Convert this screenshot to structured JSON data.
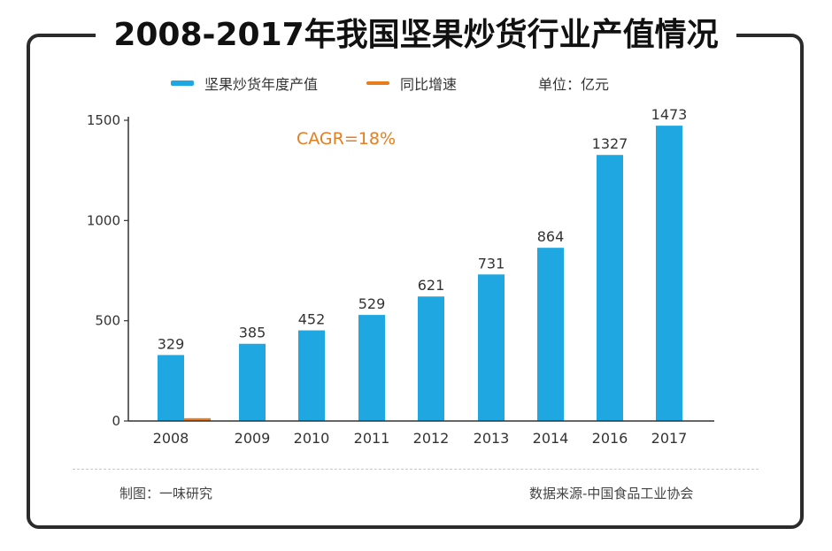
{
  "title": "2008-2017年我国坚果炒货行业产值情况",
  "legend": {
    "bar_label": "坚果炒货年度产值",
    "line_label": "同比增速",
    "unit_label": "单位：亿元"
  },
  "annotation": "CAGR=18%",
  "footer": {
    "left": "制图：一味研究",
    "right": "数据来源-中国食品工业协会"
  },
  "colors": {
    "bar": "#1ea7e1",
    "growth": "#e77d1e",
    "axis": "#333333",
    "annotation": "#e77d1e"
  },
  "chart_data": {
    "type": "bar",
    "title": "2008-2017年我国坚果炒货行业产值情况",
    "categories": [
      "2008",
      "2009",
      "2010",
      "2011",
      "2012",
      "2013",
      "2014",
      "2016",
      "2017"
    ],
    "series": [
      {
        "name": "坚果炒货年度产值",
        "type": "bar",
        "values": [
          329,
          385,
          452,
          529,
          621,
          731,
          864,
          1327,
          1473
        ]
      },
      {
        "name": "同比增速",
        "type": "line",
        "values": [
          14,
          null,
          null,
          null,
          null,
          null,
          null,
          null,
          null
        ]
      }
    ],
    "data_labels": [
      "329",
      "385",
      "452",
      "529",
      "621",
      "731",
      "864",
      "1327",
      "1473"
    ],
    "ylim": [
      0,
      1500
    ],
    "yticks": [
      0,
      500,
      1000,
      1500
    ],
    "ytick_labels": [
      "0",
      "500",
      "1000",
      "1500"
    ],
    "xlabel": "",
    "ylabel": "亿元",
    "grid": false,
    "legend_position": "top"
  }
}
